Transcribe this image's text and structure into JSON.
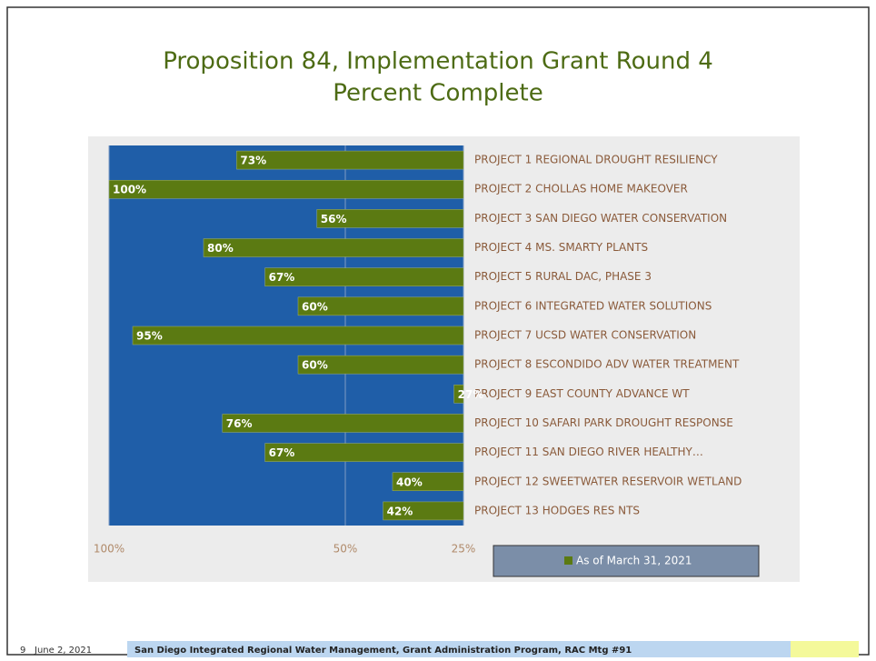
{
  "chart_data": {
    "type": "bar",
    "orientation": "horizontal",
    "title": "Proposition 84, Implementation Grant Round 4",
    "subtitle": "Percent Complete",
    "categories": [
      "PROJECT 1 REGIONAL DROUGHT RESILIENCY",
      "PROJECT 2 CHOLLAS HOME MAKEOVER",
      "PROJECT 3 SAN DIEGO WATER CONSERVATION",
      "PROJECT 4 MS. SMARTY PLANTS",
      "PROJECT 5 RURAL DAC, PHASE 3",
      "PROJECT 6 INTEGRATED WATER SOLUTIONS",
      "PROJECT 7 UCSD WATER CONSERVATION",
      "PROJECT 8 ESCONDIDO ADV WATER TREATMENT",
      "PROJECT 9 EAST COUNTY ADVANCE WT",
      "PROJECT 10 SAFARI PARK DROUGHT RESPONSE",
      "PROJECT 11 SAN DIEGO RIVER HEALTHY…",
      "PROJECT 12 SWEETWATER RESERVOIR WETLAND",
      "PROJECT 13 HODGES RES NTS"
    ],
    "series": [
      {
        "name": "As of March 31, 2021",
        "color": "#5b7a12",
        "values": [
          73,
          100,
          56,
          80,
          67,
          60,
          95,
          60,
          27,
          76,
          67,
          40,
          42
        ],
        "value_labels": [
          "73%",
          "100%",
          "56%",
          "80%",
          "67%",
          "60%",
          "95%",
          "60%",
          "27%",
          "76%",
          "67%",
          "40%",
          "42%"
        ]
      }
    ],
    "xlim": [
      100,
      25
    ],
    "xticks": [
      {
        "value": 100,
        "label": "100%"
      },
      {
        "value": 50,
        "label": "50%"
      },
      {
        "value": 25,
        "label": "25%"
      }
    ],
    "grid": true,
    "plot_background": "#1f5ea8"
  },
  "footer": {
    "slide_number": "9",
    "date": "June 2, 2021",
    "text": "San Diego Integrated Regional Water Management, Grant Administration Program, RAC Mtg #91"
  }
}
